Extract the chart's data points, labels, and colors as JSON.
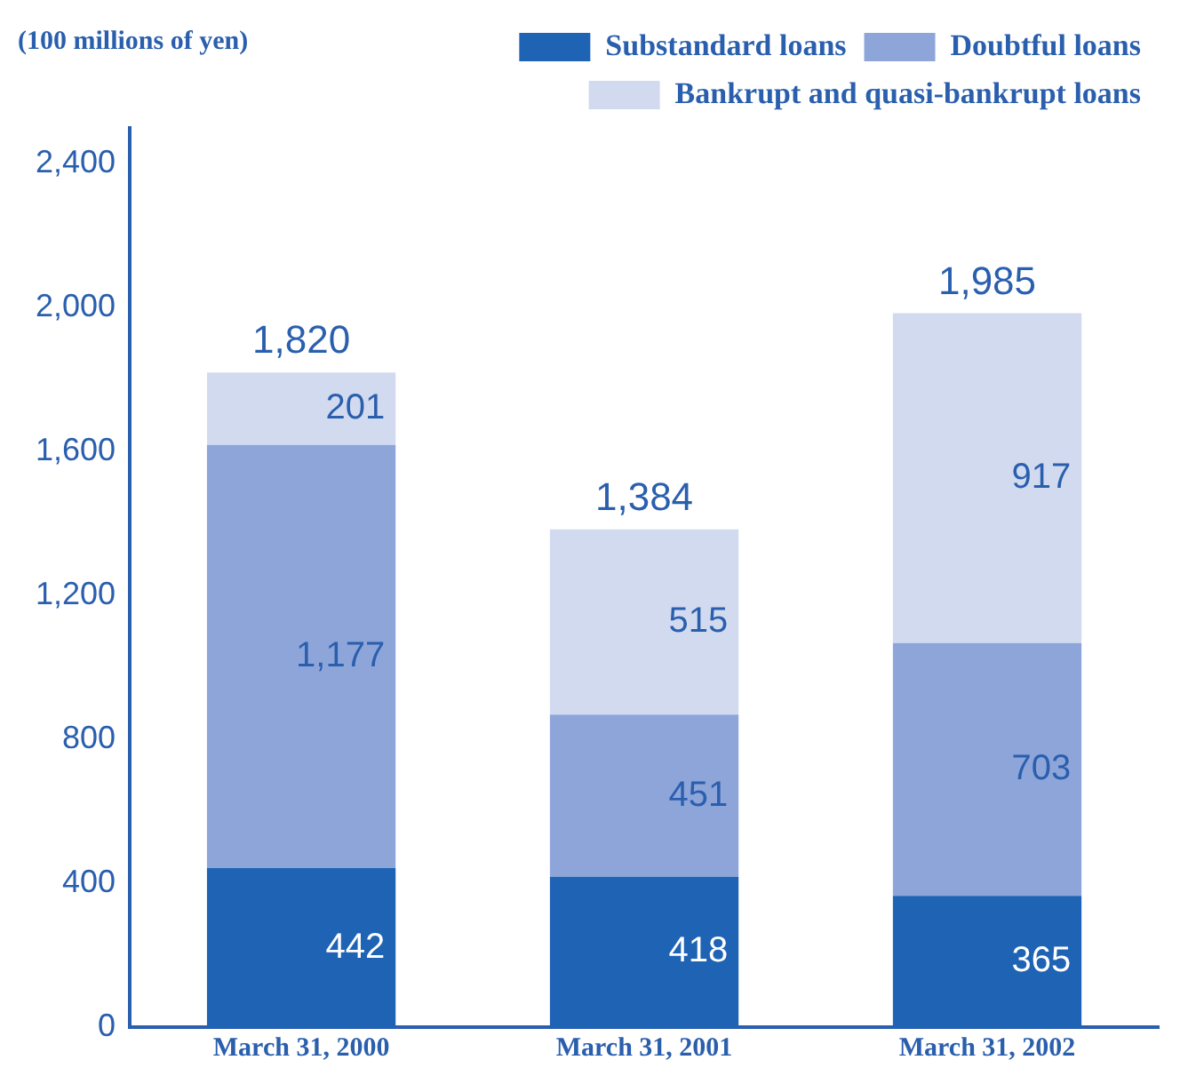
{
  "chart_data": {
    "type": "bar",
    "ylabel": "(100 millions of yen)",
    "categories": [
      "March 31, 2000",
      "March 31, 2001",
      "March 31, 2002"
    ],
    "series": [
      {
        "name": "Substandard loans",
        "color": "#1f63b5",
        "values": [
          442,
          418,
          365
        ],
        "value_labels": [
          "442",
          "418",
          "365"
        ]
      },
      {
        "name": "Doubtful loans",
        "color": "#8ea5d9",
        "values": [
          1177,
          451,
          703
        ],
        "value_labels": [
          "1,177",
          "451",
          "703"
        ]
      },
      {
        "name": "Bankrupt and quasi-bankrupt loans",
        "color": "#d2daf0",
        "values": [
          201,
          515,
          917
        ],
        "value_labels": [
          "201",
          "515",
          "917"
        ]
      }
    ],
    "stacked": true,
    "totals": [
      "1,820",
      "1,384",
      "1,985"
    ],
    "ylim": [
      0,
      2500
    ],
    "yticks": [
      0,
      400,
      800,
      {
        "value": 1200,
        "label": "1,200"
      },
      {
        "value": 1600,
        "label": "1,600"
      },
      {
        "value": 2000,
        "label": "2,000"
      },
      {
        "value": 2400,
        "label": "2,400"
      }
    ],
    "grid": false,
    "legend": "top right"
  }
}
